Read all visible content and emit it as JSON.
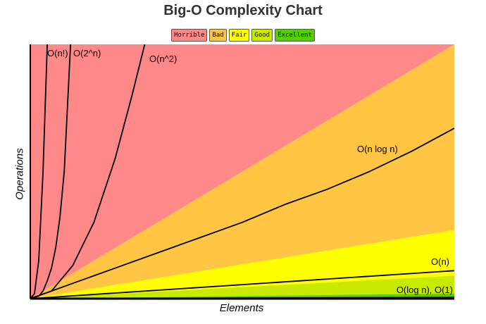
{
  "chart_data": {
    "type": "line",
    "title": "Big-O Complexity Chart",
    "xlabel": "Elements",
    "ylabel": "Operations",
    "xlim": [
      0,
      100
    ],
    "ylim": [
      0,
      100
    ],
    "grid": false,
    "legend": {
      "position": "top-center",
      "items": [
        {
          "label": "Horrible",
          "color": "#ff8989"
        },
        {
          "label": "Bad",
          "color": "#ffc543"
        },
        {
          "label": "Fair",
          "color": "#ffff00"
        },
        {
          "label": "Good",
          "color": "#c8ea00"
        },
        {
          "label": "Excellent",
          "color": "#53d000"
        }
      ]
    },
    "zones": [
      {
        "name": "Horrible",
        "color": "#ff8989",
        "upper_slope": null
      },
      {
        "name": "Bad",
        "color": "#ffc543",
        "upper_slope": 1.0
      },
      {
        "name": "Fair",
        "color": "#ffff00",
        "upper_slope": 0.27
      },
      {
        "name": "Good",
        "color": "#c8ea00",
        "upper_slope": 0.09
      },
      {
        "name": "Excellent",
        "color": "#53d000",
        "upper_slope": 0.02
      }
    ],
    "series": [
      {
        "name": "O(n!)",
        "x": [
          0,
          1,
          2,
          3,
          4
        ],
        "y": [
          0,
          2,
          15,
          50,
          100
        ]
      },
      {
        "name": "O(2^n)",
        "x": [
          0,
          2,
          3,
          4,
          5,
          6,
          7,
          8,
          9.5
        ],
        "y": [
          0,
          1,
          3,
          7,
          12,
          20,
          32,
          50,
          100
        ]
      },
      {
        "name": "O(n^2)",
        "x": [
          0,
          5,
          10,
          15,
          20,
          24,
          27
        ],
        "y": [
          0,
          3,
          13,
          30,
          55,
          80,
          100
        ]
      },
      {
        "name": "O(n log n)",
        "x": [
          0,
          10,
          20,
          30,
          40,
          50,
          60,
          70,
          80,
          90,
          100
        ],
        "y": [
          0,
          6,
          12,
          18,
          24,
          30,
          37,
          43,
          50,
          58,
          67
        ]
      },
      {
        "name": "O(n)",
        "x": [
          0,
          100
        ],
        "y": [
          0,
          11
        ]
      },
      {
        "name": "O(log n), O(1)",
        "x": [
          0,
          100
        ],
        "y": [
          0,
          0.5
        ]
      }
    ]
  }
}
